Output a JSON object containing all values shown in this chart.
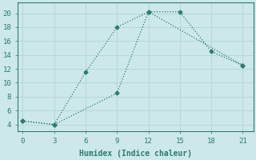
{
  "line1_x": [
    0,
    3,
    6,
    9,
    12,
    15,
    18,
    21
  ],
  "line1_y": [
    4.5,
    4.0,
    11.5,
    18.0,
    20.2,
    20.2,
    14.5,
    12.5
  ],
  "line2_x": [
    0,
    3,
    9,
    12,
    21
  ],
  "line2_y": [
    4.5,
    4.0,
    8.5,
    20.2,
    12.5
  ],
  "line_color": "#2a7d6e",
  "bg_color": "#cde8e8",
  "grid_color": "#b8d8d8",
  "xlabel": "Humidex (Indice chaleur)",
  "xlim": [
    -0.5,
    22
  ],
  "ylim": [
    3.0,
    21.5
  ],
  "xticks": [
    0,
    3,
    6,
    9,
    12,
    15,
    18,
    21
  ],
  "yticks": [
    4,
    6,
    8,
    10,
    12,
    14,
    16,
    18,
    20
  ],
  "marker": "D",
  "markersize": 2.5,
  "linewidth": 0.9
}
